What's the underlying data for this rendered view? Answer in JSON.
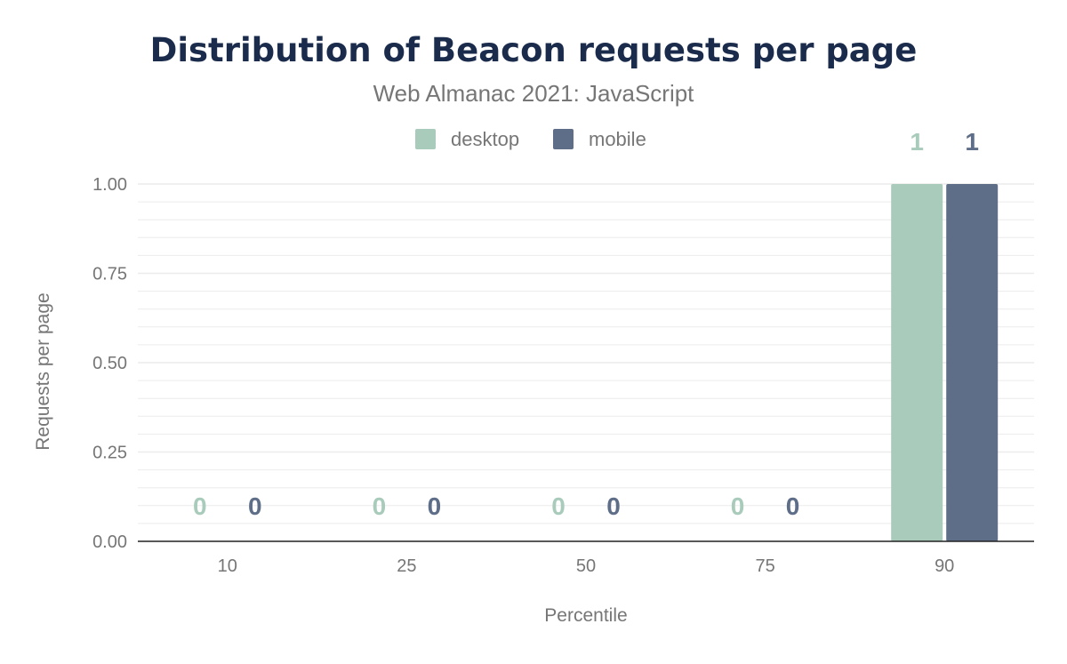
{
  "chart_data": {
    "type": "bar",
    "title": "Distribution of Beacon requests per page",
    "subtitle": "Web Almanac 2021: JavaScript",
    "xlabel": "Percentile",
    "ylabel": "Requests per page",
    "categories": [
      "10",
      "25",
      "50",
      "75",
      "90"
    ],
    "series": [
      {
        "name": "desktop",
        "values": [
          0,
          0,
          0,
          0,
          1
        ],
        "color": "#a8cbbb"
      },
      {
        "name": "mobile",
        "values": [
          0,
          0,
          0,
          0,
          1
        ],
        "color": "#5e6e88"
      }
    ],
    "data_labels": [
      [
        "0",
        "0",
        "0",
        "0",
        "1"
      ],
      [
        "0",
        "0",
        "0",
        "0",
        "1"
      ]
    ],
    "ylim": [
      0,
      1
    ],
    "yticks": [
      "0.00",
      "0.25",
      "0.50",
      "0.75",
      "1.00"
    ],
    "ytick_values": [
      0,
      0.25,
      0.5,
      0.75,
      1
    ],
    "grid": true,
    "legend_position": "top-center"
  },
  "colors": {
    "title": "#1a2b4c",
    "text": "#767676",
    "gridline": "#ececec",
    "axis": "#222222"
  }
}
